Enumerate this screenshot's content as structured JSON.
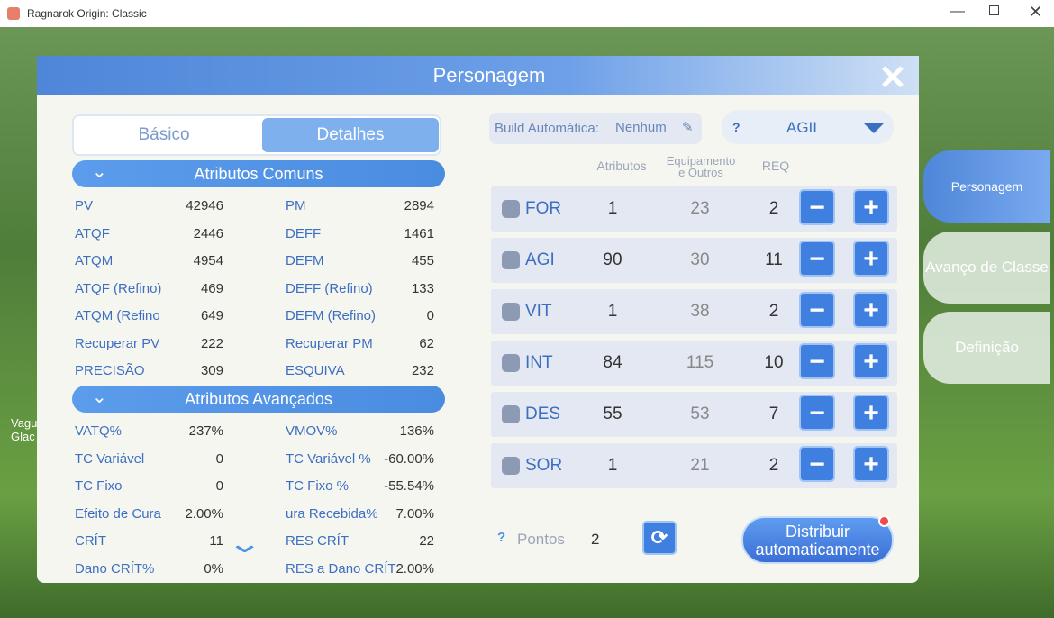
{
  "window": {
    "title": "Ragnarok Origin: Classic"
  },
  "background_label": [
    "Vagu",
    "Glac"
  ],
  "panel": {
    "title": "Personagem",
    "tabs": [
      "Básico",
      "Detalhes"
    ]
  },
  "common": {
    "title": "Atributos Comuns",
    "rows": [
      [
        "PV",
        "42946",
        "PM",
        "2894"
      ],
      [
        "ATQF",
        "2446",
        "DEFF",
        "1461"
      ],
      [
        "ATQM",
        "4954",
        "DEFM",
        "455"
      ],
      [
        "ATQF (Refino)",
        "469",
        "DEFF (Refino)",
        "133"
      ],
      [
        "ATQM (Refino",
        "649",
        "DEFM (Refino)",
        "0"
      ],
      [
        "Recuperar PV",
        "222",
        "Recuperar PM",
        "62"
      ],
      [
        "PRECISÃO",
        "309",
        "ESQUIVA",
        "232"
      ]
    ]
  },
  "advanced": {
    "title": "Atributos Avançados",
    "rows": [
      [
        "VATQ%",
        "237%",
        "VMOV%",
        "136%"
      ],
      [
        "TC Variável",
        "0",
        "TC Variável %",
        "-60.00%"
      ],
      [
        "TC Fixo",
        "0",
        "TC Fixo %",
        "-55.54%"
      ],
      [
        "Efeito de Cura",
        "2.00%",
        "ura Recebida%",
        "7.00%"
      ],
      [
        "CRÍT",
        "11",
        "RES CRÍT",
        "22"
      ],
      [
        "Dano CRÍT%",
        "0%",
        "RES a Dano CRÍT",
        "2.00%"
      ]
    ]
  },
  "build": {
    "label": "Build Automática:",
    "value": "Nenhum",
    "help": "?",
    "preset": "AGII"
  },
  "stats": {
    "headers": [
      "Atributos",
      "Equipamento e Outros",
      "REQ"
    ],
    "rows": [
      [
        "FOR",
        "1",
        "23",
        "2"
      ],
      [
        "AGI",
        "90",
        "30",
        "11"
      ],
      [
        "VIT",
        "1",
        "38",
        "2"
      ],
      [
        "INT",
        "84",
        "115",
        "10"
      ],
      [
        "DES",
        "55",
        "53",
        "7"
      ],
      [
        "SOR",
        "1",
        "21",
        "2"
      ]
    ]
  },
  "points": {
    "help": "?",
    "label": "Pontos",
    "value": "2"
  },
  "auto_button": "Distribuir automaticamente",
  "side_tabs": [
    "Personagem",
    "Avanço de Classe",
    "Definição"
  ]
}
